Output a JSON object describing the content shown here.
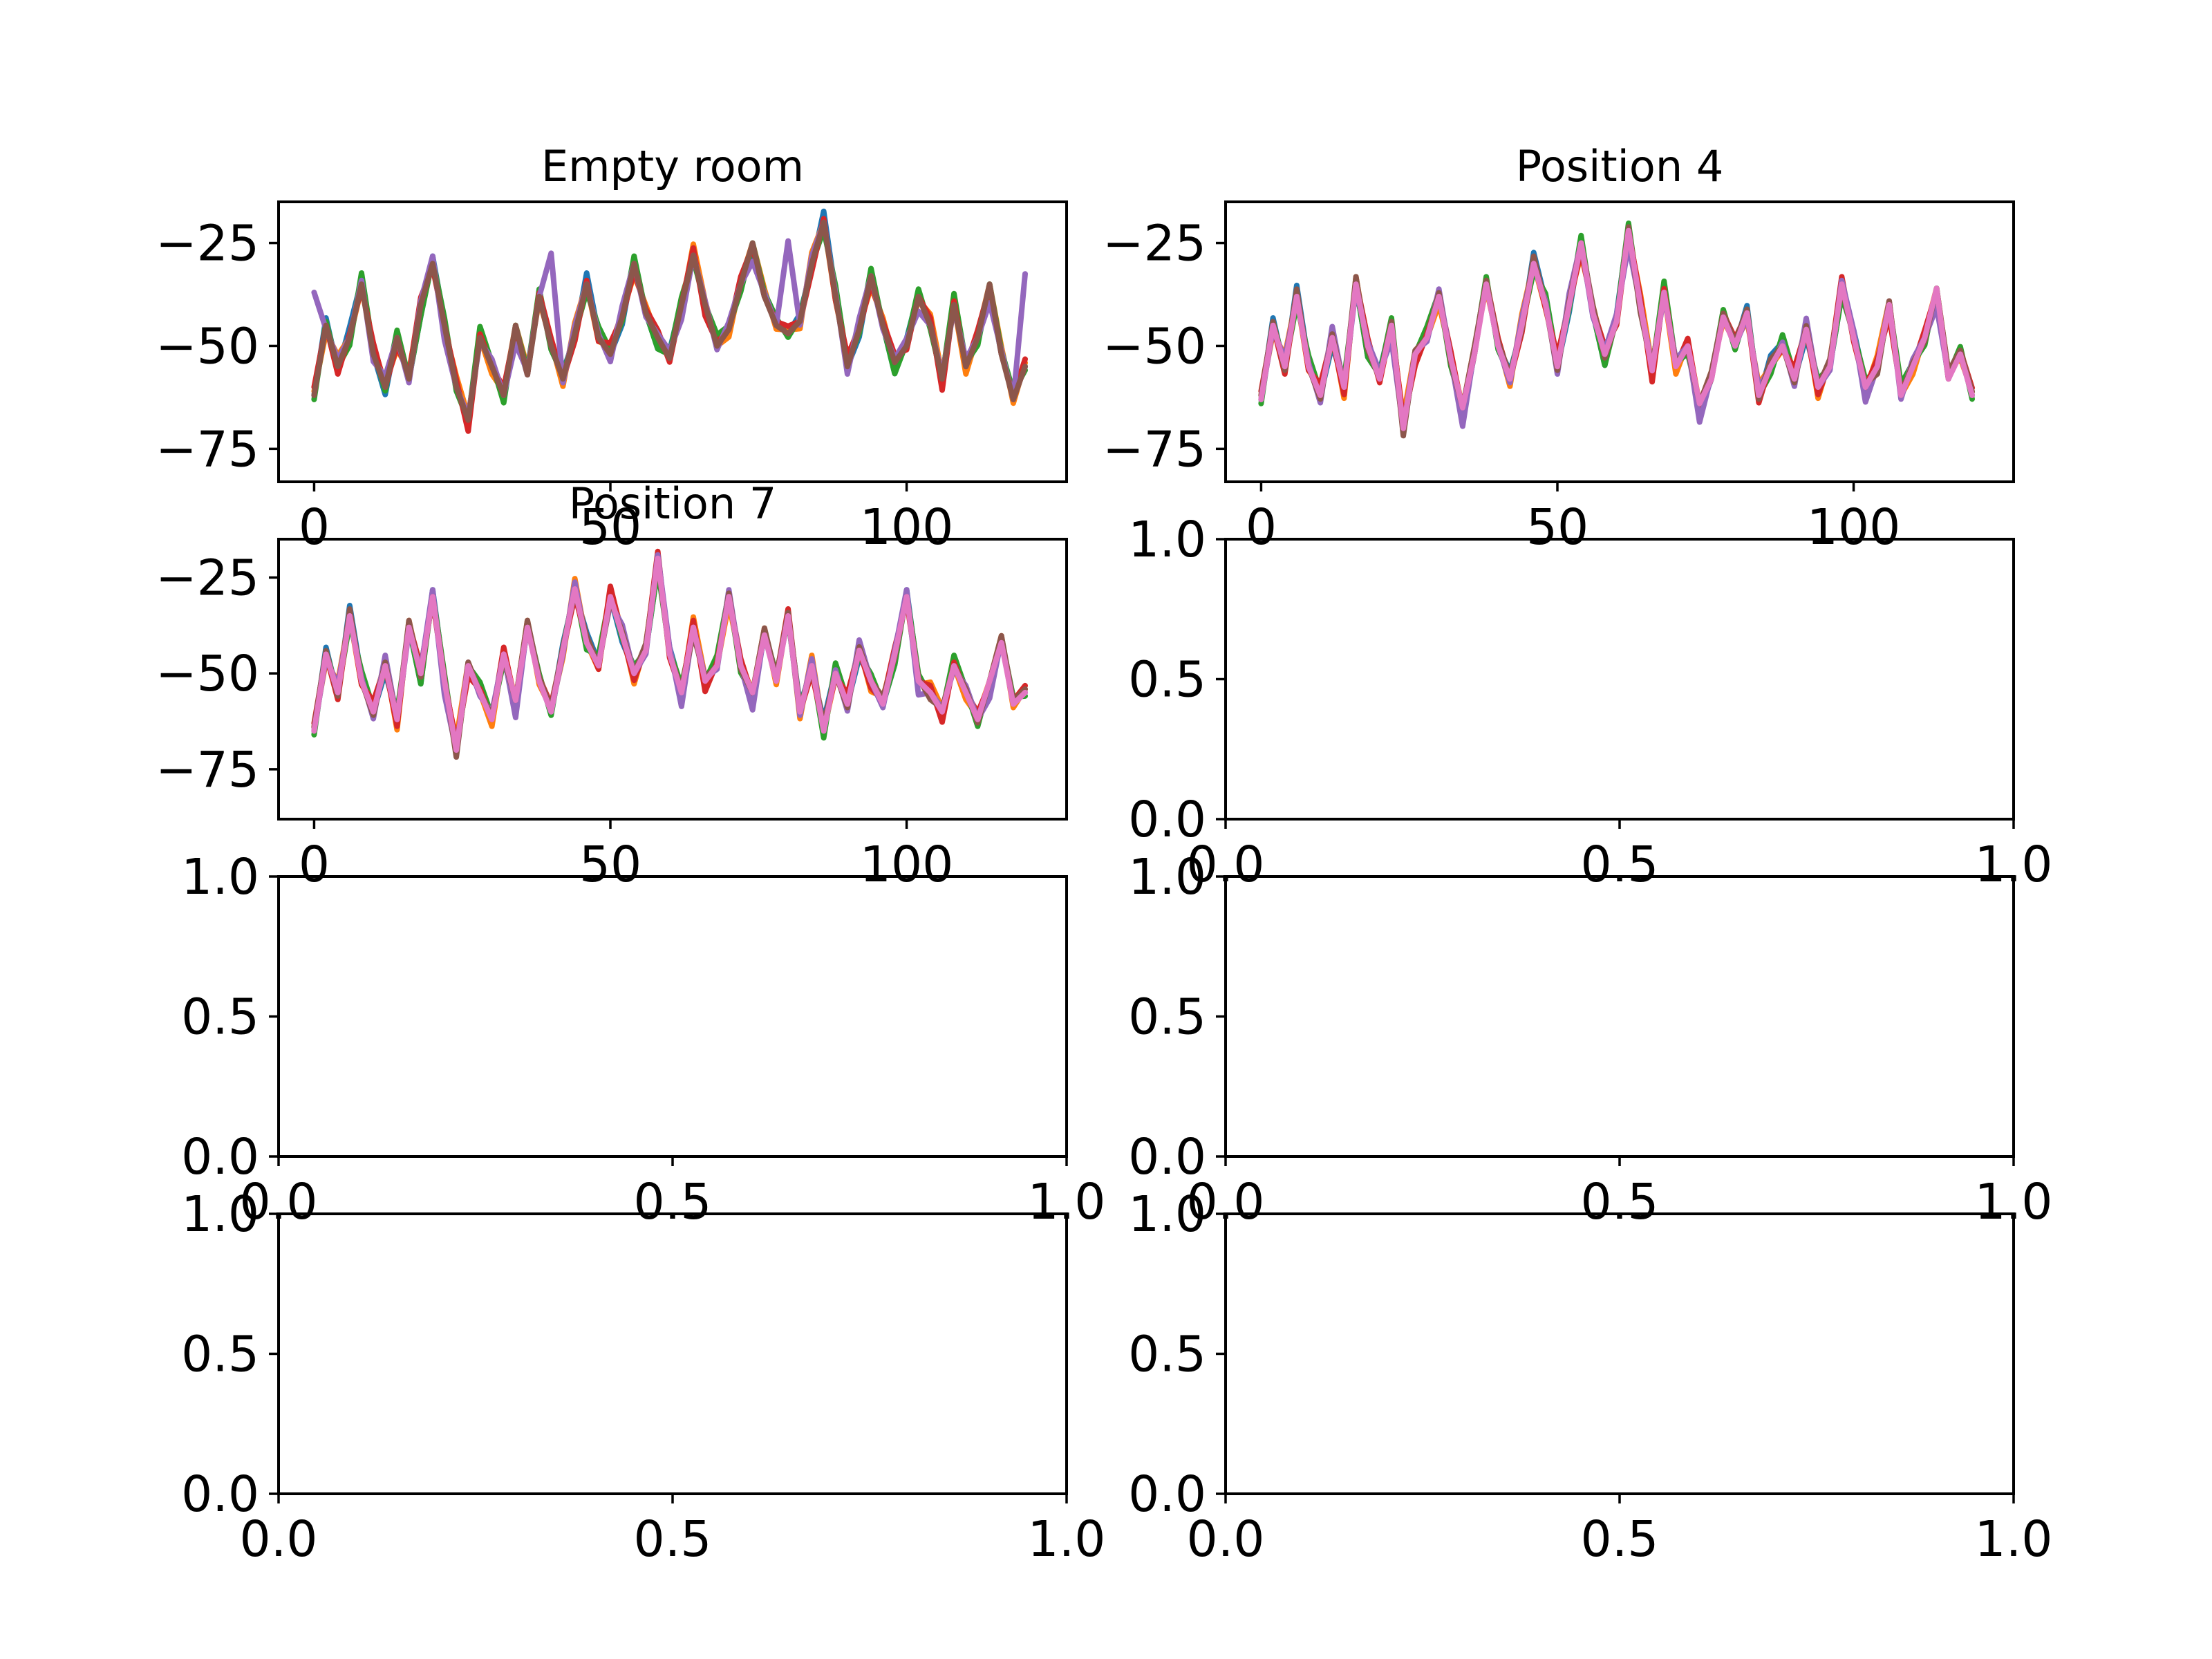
{
  "chart_data": [
    {
      "type": "line",
      "title": "Empty room",
      "position": "row-1-left",
      "xlim": [
        -6,
        127
      ],
      "ylim": [
        -83,
        -15
      ],
      "xticks": [
        0,
        50,
        100
      ],
      "xticklabels": [
        "0",
        "50",
        "100"
      ],
      "yticks": [
        -25,
        -50,
        -75
      ],
      "yticklabels": [
        "−25",
        "−50",
        "−75"
      ],
      "grid": false,
      "legend": "none",
      "series": [
        {
          "color": "#1f77b4",
          "offsets": [
            0,
            2,
            -1,
            3,
            1,
            0,
            -2,
            1,
            0,
            -3,
            2,
            1,
            0,
            -1,
            2,
            0,
            1,
            -2,
            0,
            1
          ]
        },
        {
          "color": "#ff7f0e",
          "offsets": [
            1,
            -2,
            3,
            0,
            -1,
            2,
            1,
            -3,
            2,
            0,
            1,
            -1,
            3,
            1,
            0,
            -2,
            1,
            0,
            2,
            -1
          ]
        },
        {
          "color": "#2ca02c",
          "offsets": [
            -1,
            1,
            0,
            -2,
            3,
            1,
            -1,
            2,
            0,
            -3,
            1,
            2,
            -1,
            0,
            3,
            1,
            -2,
            0,
            1,
            2
          ]
        },
        {
          "color": "#d62728",
          "offsets": [
            2,
            0,
            -2,
            1,
            -1,
            3,
            0,
            -2,
            1,
            2,
            -1,
            0,
            2,
            -3,
            1,
            0,
            2,
            -1,
            0,
            1
          ]
        },
        {
          "color": "#9467bd",
          "offsets": [
            25,
            -1,
            2,
            0,
            1,
            -2,
            3,
            0,
            -1,
            1,
            2,
            -4,
            0,
            1,
            -1,
            2,
            0,
            -5,
            1,
            0
          ]
        },
        {
          "color": "#8c564b",
          "offsets": [
            0,
            0,
            0,
            0,
            0,
            0,
            0,
            0,
            0,
            0,
            0,
            0,
            0,
            0,
            0,
            0,
            0,
            0,
            0,
            0
          ]
        }
      ],
      "base_x": [
        0,
        2,
        4,
        6,
        8,
        10,
        12,
        14,
        16,
        18,
        20,
        22,
        24,
        26,
        28,
        30,
        32,
        34,
        36,
        38,
        40,
        42,
        44,
        46,
        48,
        50,
        52,
        54,
        56,
        58,
        60,
        62,
        64,
        66,
        68,
        70,
        72,
        74,
        76,
        78,
        80,
        82,
        84,
        86,
        88,
        90,
        92,
        94,
        96,
        98,
        100,
        102,
        104,
        106,
        108,
        110,
        112,
        114,
        116,
        118,
        120
      ],
      "base_y": [
        -62,
        -45,
        -55,
        -48,
        -35,
        -52,
        -60,
        -48,
        -58,
        -40,
        -30,
        -45,
        -60,
        -68,
        -48,
        -55,
        -62,
        -45,
        -57,
        -38,
        -50,
        -58,
        -47,
        -35,
        -48,
        -52,
        -43,
        -30,
        -42,
        -48,
        -53,
        -40,
        -28,
        -40,
        -50,
        -46,
        -35,
        -25,
        -38,
        -45,
        -47,
        -44,
        -30,
        -20,
        -38,
        -55,
        -46,
        -33,
        -45,
        -54,
        -50,
        -38,
        -45,
        -58,
        -40,
        -55,
        -48,
        -35,
        -52,
        -63,
        -55
      ]
    },
    {
      "type": "line",
      "title": "Position 4",
      "position": "row-1-right",
      "xlim": [
        -6,
        127
      ],
      "ylim": [
        -83,
        -15
      ],
      "xticks": [
        0,
        50,
        100
      ],
      "xticklabels": [
        "0",
        "50",
        "100"
      ],
      "yticks": [
        -25,
        -50,
        -75
      ],
      "yticklabels": [
        "−25",
        "−50",
        "−75"
      ],
      "grid": false,
      "legend": "none",
      "series": [
        {
          "color": "#1f77b4",
          "offsets": [
            0,
            2,
            -1,
            3,
            1,
            0,
            -2,
            1,
            0,
            -3,
            2,
            1,
            0,
            -1,
            2,
            0,
            1,
            -2,
            0,
            1
          ]
        },
        {
          "color": "#ff7f0e",
          "offsets": [
            1,
            -2,
            3,
            0,
            -1,
            2,
            1,
            -3,
            2,
            0,
            1,
            -1,
            3,
            1,
            0,
            -2,
            1,
            0,
            2,
            -1
          ]
        },
        {
          "color": "#2ca02c",
          "offsets": [
            -1,
            1,
            0,
            -2,
            3,
            1,
            -1,
            2,
            0,
            -3,
            1,
            2,
            -1,
            0,
            3,
            1,
            -2,
            0,
            1,
            2
          ]
        },
        {
          "color": "#d62728",
          "offsets": [
            2,
            0,
            -2,
            1,
            -1,
            3,
            0,
            -2,
            1,
            2,
            -1,
            0,
            2,
            -3,
            1,
            0,
            2,
            -1,
            0,
            1
          ]
        },
        {
          "color": "#9467bd",
          "offsets": [
            0,
            -1,
            2,
            0,
            1,
            -2,
            3,
            0,
            -1,
            1,
            2,
            -4,
            0,
            1,
            -1,
            2,
            0,
            -5,
            1,
            0
          ]
        },
        {
          "color": "#8c564b",
          "offsets": [
            1,
            1,
            -1,
            2,
            0,
            -1,
            1,
            0,
            2,
            -1,
            0,
            1,
            -2,
            1,
            0,
            1,
            -1,
            0,
            2,
            1
          ]
        },
        {
          "color": "#e377c2",
          "offsets": [
            0,
            0,
            0,
            0,
            0,
            0,
            0,
            0,
            0,
            0,
            0,
            0,
            0,
            0,
            0,
            0,
            0,
            0,
            0,
            0
          ]
        }
      ],
      "base_x": [
        0,
        2,
        4,
        6,
        8,
        10,
        12,
        14,
        16,
        18,
        20,
        22,
        24,
        26,
        28,
        30,
        32,
        34,
        36,
        38,
        40,
        42,
        44,
        46,
        48,
        50,
        52,
        54,
        56,
        58,
        60,
        62,
        64,
        66,
        68,
        70,
        72,
        74,
        76,
        78,
        80,
        82,
        84,
        86,
        88,
        90,
        92,
        94,
        96,
        98,
        100,
        102,
        104,
        106,
        108,
        110,
        112,
        114,
        116,
        118,
        120
      ],
      "base_y": [
        -63,
        -45,
        -55,
        -38,
        -55,
        -62,
        -48,
        -60,
        -35,
        -50,
        -58,
        -45,
        -70,
        -52,
        -48,
        -38,
        -53,
        -65,
        -52,
        -35,
        -50,
        -58,
        -45,
        -30,
        -40,
        -55,
        -40,
        -25,
        -42,
        -52,
        -44,
        -22,
        -40,
        -56,
        -37,
        -55,
        -50,
        -64,
        -58,
        -43,
        -50,
        -42,
        -62,
        -55,
        -50,
        -58,
        -46,
        -60,
        -55,
        -35,
        -48,
        -60,
        -55,
        -40,
        -62,
        -55,
        -48,
        -36,
        -58,
        -52,
        -62
      ]
    },
    {
      "type": "line",
      "title": "Position 7",
      "position": "row-2-left",
      "xlim": [
        -6,
        127
      ],
      "ylim": [
        -88,
        -15
      ],
      "xticks": [
        0,
        50,
        100
      ],
      "xticklabels": [
        "0",
        "50",
        "100"
      ],
      "yticks": [
        -25,
        -50,
        -75
      ],
      "yticklabels": [
        "−25",
        "−50",
        "−75"
      ],
      "grid": false,
      "legend": "none",
      "series": [
        {
          "color": "#1f77b4",
          "offsets": [
            0,
            2,
            -1,
            3,
            1,
            0,
            -2,
            1,
            0,
            -3,
            2,
            1,
            0,
            -1,
            2,
            0,
            1,
            -2,
            0,
            1
          ]
        },
        {
          "color": "#ff7f0e",
          "offsets": [
            1,
            -2,
            3,
            0,
            -1,
            2,
            1,
            -3,
            2,
            0,
            1,
            -1,
            3,
            1,
            0,
            -2,
            1,
            0,
            2,
            -1
          ]
        },
        {
          "color": "#2ca02c",
          "offsets": [
            -1,
            1,
            0,
            -2,
            3,
            1,
            -1,
            2,
            0,
            -3,
            1,
            2,
            -1,
            0,
            3,
            1,
            -2,
            0,
            1,
            2
          ]
        },
        {
          "color": "#d62728",
          "offsets": [
            2,
            0,
            -2,
            1,
            -1,
            3,
            0,
            -2,
            1,
            2,
            -1,
            0,
            2,
            -3,
            1,
            0,
            2,
            -1,
            0,
            1
          ]
        },
        {
          "color": "#9467bd",
          "offsets": [
            0,
            -1,
            2,
            0,
            1,
            -2,
            3,
            0,
            -1,
            1,
            2,
            -4,
            0,
            1,
            -1,
            2,
            0,
            -5,
            1,
            0
          ]
        },
        {
          "color": "#8c564b",
          "offsets": [
            1,
            1,
            -1,
            2,
            0,
            -1,
            1,
            0,
            2,
            -1,
            0,
            1,
            -2,
            1,
            0,
            1,
            -1,
            0,
            2,
            1
          ]
        },
        {
          "color": "#e377c2",
          "offsets": [
            0,
            0,
            0,
            0,
            0,
            0,
            0,
            0,
            0,
            0,
            0,
            0,
            0,
            0,
            0,
            0,
            0,
            0,
            0,
            0
          ]
        }
      ],
      "base_x": [
        0,
        2,
        4,
        6,
        8,
        10,
        12,
        14,
        16,
        18,
        20,
        22,
        24,
        26,
        28,
        30,
        32,
        34,
        36,
        38,
        40,
        42,
        44,
        46,
        48,
        50,
        52,
        54,
        56,
        58,
        60,
        62,
        64,
        66,
        68,
        70,
        72,
        74,
        76,
        78,
        80,
        82,
        84,
        86,
        88,
        90,
        92,
        94,
        96,
        98,
        100,
        102,
        104,
        106,
        108,
        110,
        112,
        114,
        116,
        118,
        120
      ],
      "base_y": [
        -65,
        -45,
        -55,
        -35,
        -52,
        -60,
        -48,
        -62,
        -38,
        -50,
        -30,
        -52,
        -70,
        -48,
        -55,
        -62,
        -45,
        -57,
        -38,
        -52,
        -60,
        -44,
        -28,
        -42,
        -48,
        -30,
        -40,
        -50,
        -44,
        -20,
        -45,
        -55,
        -38,
        -52,
        -48,
        -30,
        -48,
        -55,
        -40,
        -52,
        -35,
        -60,
        -48,
        -65,
        -50,
        -58,
        -44,
        -52,
        -58,
        -45,
        -30,
        -52,
        -55,
        -60,
        -48,
        -55,
        -62,
        -52,
        -42,
        -58,
        -55
      ]
    },
    {
      "type": "line",
      "position": "row-2-right",
      "xlim": [
        0,
        1
      ],
      "ylim": [
        0,
        1
      ],
      "xticks": [
        0,
        0.5,
        1
      ],
      "xticklabels": [
        "0.0",
        "0.5",
        "1.0"
      ],
      "yticks": [
        0,
        0.5,
        1
      ],
      "yticklabels": [
        "0.0",
        "0.5",
        "1.0"
      ],
      "grid": false,
      "legend": "none",
      "series": []
    },
    {
      "type": "line",
      "position": "row-3-left",
      "xlim": [
        0,
        1
      ],
      "ylim": [
        0,
        1
      ],
      "xticks": [
        0,
        0.5,
        1
      ],
      "xticklabels": [
        "0.0",
        "0.5",
        "1.0"
      ],
      "yticks": [
        0,
        0.5,
        1
      ],
      "yticklabels": [
        "0.0",
        "0.5",
        "1.0"
      ],
      "grid": false,
      "legend": "none",
      "series": []
    },
    {
      "type": "line",
      "position": "row-3-right",
      "xlim": [
        0,
        1
      ],
      "ylim": [
        0,
        1
      ],
      "xticks": [
        0,
        0.5,
        1
      ],
      "xticklabels": [
        "0.0",
        "0.5",
        "1.0"
      ],
      "yticks": [
        0,
        0.5,
        1
      ],
      "yticklabels": [
        "0.0",
        "0.5",
        "1.0"
      ],
      "grid": false,
      "legend": "none",
      "series": []
    },
    {
      "type": "line",
      "position": "row-4-left",
      "xlim": [
        0,
        1
      ],
      "ylim": [
        0,
        1
      ],
      "xticks": [
        0,
        0.5,
        1
      ],
      "xticklabels": [
        "0.0",
        "0.5",
        "1.0"
      ],
      "yticks": [
        0,
        0.5,
        1
      ],
      "yticklabels": [
        "0.0",
        "0.5",
        "1.0"
      ],
      "grid": false,
      "legend": "none",
      "series": []
    },
    {
      "type": "line",
      "position": "row-4-right",
      "xlim": [
        0,
        1
      ],
      "ylim": [
        0,
        1
      ],
      "xticks": [
        0,
        0.5,
        1
      ],
      "xticklabels": [
        "0.0",
        "0.5",
        "1.0"
      ],
      "yticks": [
        0,
        0.5,
        1
      ],
      "yticklabels": [
        "0.0",
        "0.5",
        "1.0"
      ],
      "grid": false,
      "legend": "none",
      "series": []
    }
  ]
}
